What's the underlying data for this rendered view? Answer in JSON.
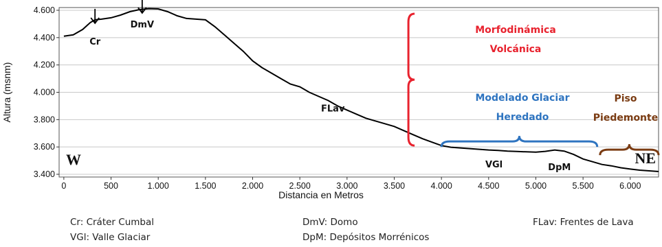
{
  "chart_data": {
    "type": "line",
    "xlabel": "Distancia en Metros",
    "ylabel": "Altura (msnm)",
    "xlim": [
      -50,
      6300
    ],
    "ylim": [
      3380,
      4620
    ],
    "x_ticks": [
      0,
      500,
      1000,
      1500,
      2000,
      2500,
      3000,
      3500,
      4000,
      4500,
      5000,
      5500,
      6000
    ],
    "x_tick_labels": [
      "0",
      "500",
      "1.000",
      "1.500",
      "2.000",
      "2.500",
      "3.000",
      "3.500",
      "4.000",
      "4.500",
      "5.000",
      "5.500",
      "6.000"
    ],
    "y_ticks": [
      3400,
      3600,
      3800,
      4000,
      4200,
      4400,
      4600
    ],
    "y_tick_labels": [
      "3.400",
      "3.600",
      "3.800",
      "4.000",
      "4.200",
      "4.400",
      "4.600"
    ],
    "grid": "horizontal",
    "series": [
      {
        "color": "#000000",
        "x": [
          0,
          100,
          200,
          280,
          330,
          400,
          500,
          600,
          700,
          800,
          900,
          1000,
          1100,
          1200,
          1300,
          1400,
          1500,
          1600,
          1700,
          1800,
          1900,
          2000,
          2100,
          2200,
          2300,
          2400,
          2500,
          2600,
          2700,
          2800,
          2900,
          3000,
          3100,
          3200,
          3300,
          3400,
          3500,
          3600,
          3700,
          3800,
          3900,
          4000,
          4100,
          4200,
          4300,
          4400,
          4500,
          4600,
          4700,
          4800,
          4900,
          5000,
          5100,
          5200,
          5300,
          5400,
          5500,
          5600,
          5700,
          5800,
          5900,
          6000,
          6100,
          6200,
          6300
        ],
        "y": [
          4410,
          4420,
          4460,
          4510,
          4530,
          4535,
          4545,
          4565,
          4590,
          4605,
          4612,
          4610,
          4590,
          4560,
          4540,
          4535,
          4530,
          4480,
          4420,
          4360,
          4300,
          4230,
          4180,
          4140,
          4100,
          4060,
          4040,
          4000,
          3970,
          3940,
          3900,
          3870,
          3840,
          3810,
          3790,
          3770,
          3750,
          3720,
          3690,
          3660,
          3635,
          3610,
          3598,
          3593,
          3588,
          3583,
          3578,
          3575,
          3570,
          3567,
          3564,
          3562,
          3568,
          3578,
          3570,
          3545,
          3512,
          3492,
          3472,
          3462,
          3448,
          3438,
          3430,
          3425,
          3420
        ]
      }
    ],
    "features": [
      {
        "label": "Cr",
        "x": 330,
        "y": 4540,
        "marker": "arrow"
      },
      {
        "label": "DmV",
        "x": 830,
        "y": 4615,
        "marker": "arrow"
      },
      {
        "label": "FLav",
        "x": 2850,
        "y": 3880,
        "marker": "none"
      },
      {
        "label": "VGl",
        "x": 4600,
        "y": 3540,
        "marker": "none"
      },
      {
        "label": "DpM",
        "x": 5250,
        "y": 3520,
        "marker": "none"
      }
    ],
    "direction_labels": [
      "W",
      "NE"
    ],
    "zones": [
      {
        "lines": [
          "Morfodinámica",
          "Volcánica"
        ],
        "color": "#e8222e",
        "x_range": [
          3650,
          4080
        ],
        "y_range": [
          3610,
          4575
        ],
        "orientation": "vertical"
      },
      {
        "lines": [
          "Modelado Glaciar",
          "Heredado"
        ],
        "color": "#2e74c0",
        "x_range": [
          4000,
          5650
        ],
        "y_range": [
          3610,
          3700
        ],
        "orientation": "horizontal"
      },
      {
        "lines": [
          "Piso",
          "Piedemonte"
        ],
        "color": "#7a3b12",
        "x_range": [
          5680,
          6300
        ],
        "y_range": [
          3540,
          3630
        ],
        "orientation": "horizontal"
      }
    ]
  },
  "legend": {
    "items": [
      "Cr: Cráter Cumbal",
      "DmV: Domo",
      "FLav: Frentes de Lava",
      "VGl: Valle Glaciar",
      "DpM: Depósitos Morrénicos"
    ]
  }
}
